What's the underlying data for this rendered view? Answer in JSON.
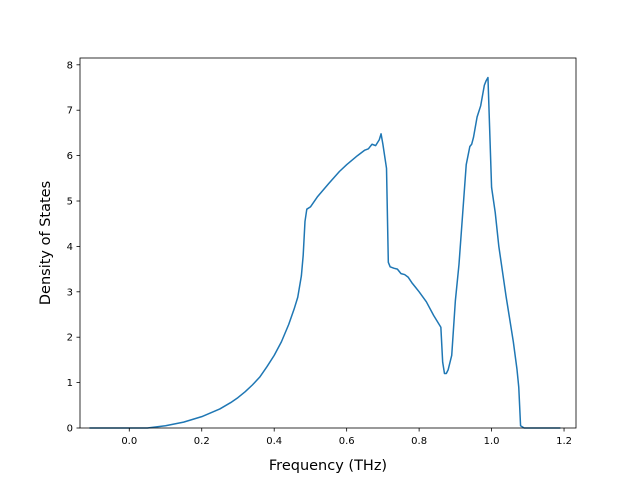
{
  "chart_data": {
    "type": "line",
    "title": "",
    "xlabel": "Frequency (THz)",
    "ylabel": "Density of States",
    "xlim": [
      -0.136,
      1.233
    ],
    "ylim": [
      0,
      8.15
    ],
    "xticks": [
      "0.0",
      "0.2",
      "0.4",
      "0.6",
      "0.8",
      "1.0",
      "1.2"
    ],
    "xtick_values": [
      0.0,
      0.2,
      0.4,
      0.6,
      0.8,
      1.0,
      1.2
    ],
    "yticks": [
      "0",
      "1",
      "2",
      "3",
      "4",
      "5",
      "6",
      "7",
      "8"
    ],
    "ytick_values": [
      0,
      1,
      2,
      3,
      4,
      5,
      6,
      7,
      8
    ],
    "grid": false,
    "legend": "none",
    "series": [
      {
        "color": "#1f77b4",
        "x": [
          -0.11,
          -0.05,
          0.0,
          0.05,
          0.1,
          0.15,
          0.2,
          0.25,
          0.28,
          0.3,
          0.32,
          0.34,
          0.36,
          0.38,
          0.4,
          0.42,
          0.44,
          0.455,
          0.465,
          0.475,
          0.48,
          0.485,
          0.49,
          0.5,
          0.52,
          0.55,
          0.58,
          0.6,
          0.63,
          0.65,
          0.66,
          0.67,
          0.68,
          0.69,
          0.695,
          0.7,
          0.71,
          0.715,
          0.72,
          0.73,
          0.74,
          0.75,
          0.76,
          0.77,
          0.78,
          0.79,
          0.8,
          0.82,
          0.84,
          0.86,
          0.865,
          0.87,
          0.875,
          0.88,
          0.89,
          0.9,
          0.91,
          0.92,
          0.93,
          0.94,
          0.945,
          0.95,
          0.96,
          0.97,
          0.98,
          0.985,
          0.99,
          1.0,
          1.01,
          1.02,
          1.04,
          1.06,
          1.07,
          1.075,
          1.08,
          1.09,
          1.12,
          1.15,
          1.19
        ],
        "y": [
          0.0,
          0.0,
          0.0,
          0.0,
          0.05,
          0.13,
          0.25,
          0.42,
          0.56,
          0.67,
          0.8,
          0.95,
          1.12,
          1.35,
          1.6,
          1.9,
          2.28,
          2.62,
          2.88,
          3.35,
          3.8,
          4.55,
          4.82,
          4.87,
          5.1,
          5.38,
          5.65,
          5.8,
          6.0,
          6.12,
          6.15,
          6.25,
          6.22,
          6.35,
          6.48,
          6.25,
          5.72,
          3.65,
          3.55,
          3.52,
          3.5,
          3.4,
          3.38,
          3.32,
          3.2,
          3.1,
          3.0,
          2.78,
          2.48,
          2.22,
          1.45,
          1.2,
          1.2,
          1.28,
          1.6,
          2.8,
          3.6,
          4.7,
          5.8,
          6.2,
          6.25,
          6.4,
          6.85,
          7.1,
          7.55,
          7.65,
          7.72,
          5.3,
          4.75,
          4.0,
          2.9,
          1.9,
          1.3,
          0.9,
          0.05,
          0.0,
          0.0,
          0.0,
          0.0
        ]
      }
    ]
  }
}
